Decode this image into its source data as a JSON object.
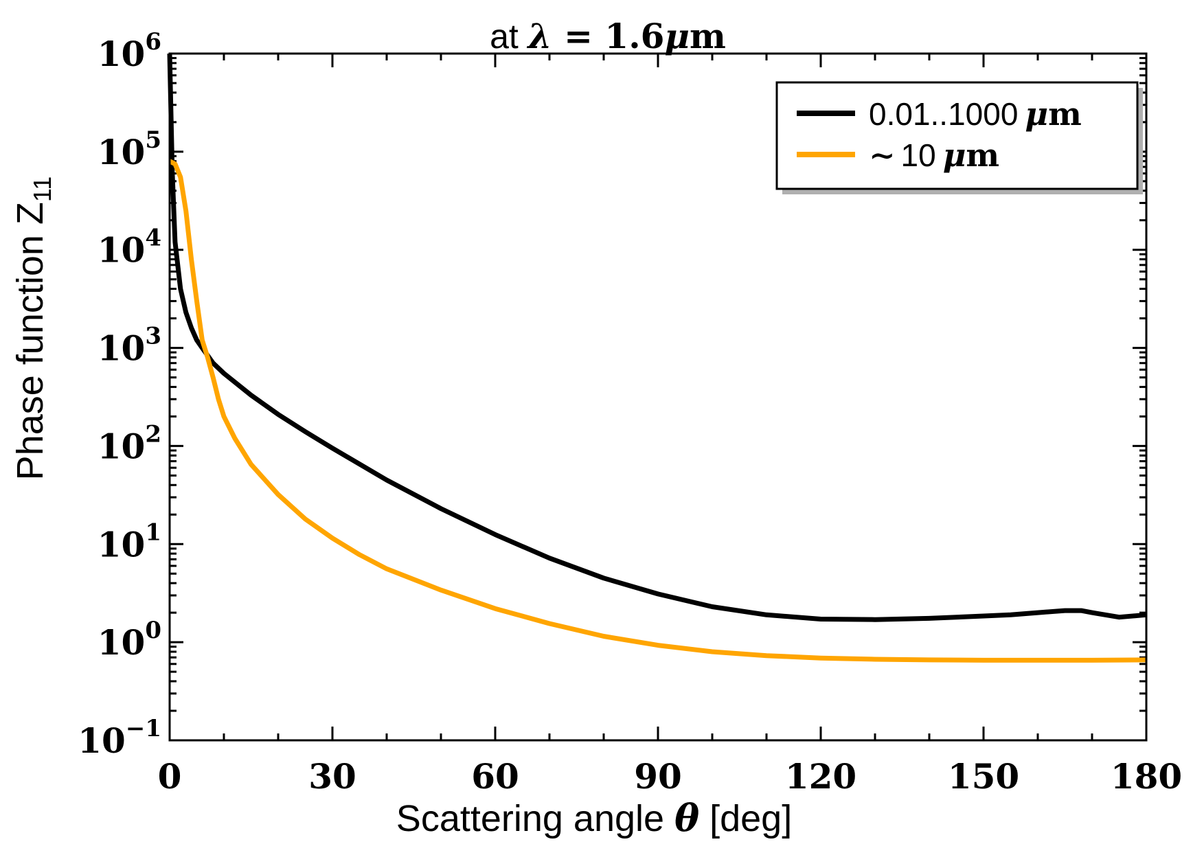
{
  "chart_data": {
    "type": "line",
    "title": {
      "prefix": "at ",
      "symbol": "λ",
      "rest": " = 1.6",
      "unit_symbol": "μ",
      "unit_letter": "m"
    },
    "xlabel": {
      "text": "Scattering angle ",
      "symbol": "θ",
      "unit": " [deg]"
    },
    "ylabel": {
      "text": "Phase function ",
      "symbol": "Z",
      "subscript": "11"
    },
    "x_range": [
      0,
      180
    ],
    "y_range": [
      0.1,
      1000000
    ],
    "y_scale": "log",
    "x_ticks": [
      {
        "value": 0,
        "label": "0"
      },
      {
        "value": 30,
        "label": "30"
      },
      {
        "value": 60,
        "label": "60"
      },
      {
        "value": 90,
        "label": "90"
      },
      {
        "value": 120,
        "label": "120"
      },
      {
        "value": 150,
        "label": "150"
      },
      {
        "value": 180,
        "label": "180"
      }
    ],
    "y_ticks": [
      {
        "value": 0.1,
        "base": "10",
        "exp": "−1"
      },
      {
        "value": 1,
        "base": "10",
        "exp": "0"
      },
      {
        "value": 10,
        "base": "10",
        "exp": "1"
      },
      {
        "value": 100,
        "base": "10",
        "exp": "2"
      },
      {
        "value": 1000,
        "base": "10",
        "exp": "3"
      },
      {
        "value": 10000,
        "base": "10",
        "exp": "4"
      },
      {
        "value": 100000,
        "base": "10",
        "exp": "5"
      },
      {
        "value": 1000000,
        "base": "10",
        "exp": "6"
      }
    ],
    "legend_position": "top-right",
    "series": [
      {
        "name": "0.01..1000 μm",
        "legend_number": "0.01..1000",
        "legend_unit_symbol": "μ",
        "legend_unit_letter": "m",
        "color": "#000000",
        "x": [
          0,
          0.5,
          1,
          2,
          3,
          4,
          5,
          6,
          8,
          10,
          15,
          20,
          25,
          30,
          40,
          50,
          60,
          70,
          80,
          90,
          100,
          110,
          120,
          130,
          140,
          150,
          155,
          160,
          165,
          168,
          170,
          175,
          180
        ],
        "y": [
          1000000,
          60000,
          12000,
          4000,
          2300,
          1600,
          1200,
          1000,
          700,
          550,
          330,
          210,
          140,
          95,
          45,
          23,
          12.5,
          7.2,
          4.5,
          3.1,
          2.3,
          1.9,
          1.72,
          1.7,
          1.75,
          1.85,
          1.9,
          2.0,
          2.1,
          2.1,
          2.0,
          1.8,
          1.9
        ]
      },
      {
        "name": "~10 μm",
        "legend_prefix": "∼",
        "legend_number": "10",
        "legend_unit_symbol": "μ",
        "legend_unit_letter": "m",
        "color": "#FFA500",
        "x": [
          0,
          1,
          2,
          3,
          4,
          5,
          6,
          7,
          8,
          9,
          10,
          12,
          15,
          20,
          25,
          30,
          35,
          40,
          50,
          60,
          70,
          80,
          90,
          100,
          110,
          120,
          130,
          140,
          150,
          160,
          170,
          180
        ],
        "y": [
          80000,
          75000,
          55000,
          25000,
          8000,
          3000,
          1200,
          800,
          500,
          300,
          200,
          120,
          65,
          32,
          18,
          11.5,
          7.8,
          5.6,
          3.4,
          2.2,
          1.55,
          1.15,
          0.93,
          0.8,
          0.73,
          0.69,
          0.67,
          0.66,
          0.655,
          0.655,
          0.655,
          0.66
        ]
      }
    ]
  }
}
